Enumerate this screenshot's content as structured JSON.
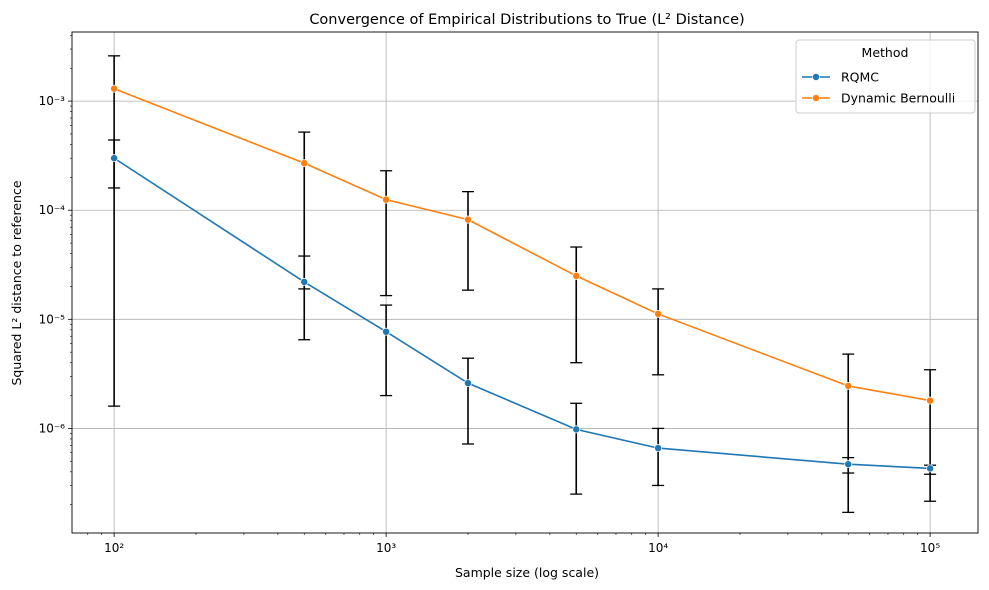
{
  "chart_data": {
    "type": "line",
    "title": "Convergence of Empirical Distributions to True (L² Distance)",
    "xlabel": "Sample size (log scale)",
    "ylabel": "Squared L² distance to reference",
    "xscale": "log",
    "yscale": "log",
    "xlim": [
      70,
      150000
    ],
    "ylim": [
      1.1e-07,
      0.0043
    ],
    "x_tick_labels": [
      {
        "value": 100,
        "label": "10²"
      },
      {
        "value": 1000,
        "label": "10³"
      },
      {
        "value": 10000,
        "label": "10⁴"
      },
      {
        "value": 100000,
        "label": "10⁵"
      }
    ],
    "y_tick_labels": [
      {
        "value": 1e-06,
        "label": "10⁻⁶"
      },
      {
        "value": 1e-05,
        "label": "10⁻⁵"
      },
      {
        "value": 0.0001,
        "label": "10⁻⁴"
      },
      {
        "value": 0.001,
        "label": "10⁻³"
      }
    ],
    "grid": true,
    "legend": {
      "title": "Method",
      "placement": "top-right"
    },
    "x": [
      100,
      500,
      1000,
      2000,
      5000,
      10000,
      50000,
      100000
    ],
    "series": [
      {
        "name": "RQMC",
        "color": "#1f77b4",
        "values": [
          0.0003,
          2.2e-05,
          7.7e-06,
          2.6e-06,
          9.8e-07,
          6.6e-07,
          4.7e-07,
          4.3e-07
        ],
        "err_low": [
          1.6e-06,
          6.5e-06,
          2e-06,
          7.2e-07,
          2.5e-07,
          3e-07,
          3.9e-07,
          3.8e-07
        ],
        "err_high": [
          0.00044,
          3.8e-05,
          1.35e-05,
          4.4e-06,
          1.7e-06,
          1e-06,
          5.4e-07,
          4.6e-07
        ]
      },
      {
        "name": "Dynamic Bernoulli",
        "color": "#ff7f0e",
        "values": [
          0.0013,
          0.00027,
          0.000125,
          8.2e-05,
          2.5e-05,
          1.12e-05,
          2.45e-06,
          1.8e-06
        ],
        "err_low": [
          0.00016,
          1.9e-05,
          1.65e-05,
          1.85e-05,
          4e-06,
          3.1e-06,
          1.7e-07,
          2.15e-07
        ],
        "err_high": [
          0.0026,
          0.00052,
          0.00023,
          0.000148,
          4.6e-05,
          1.9e-05,
          4.8e-06,
          3.45e-06
        ]
      }
    ]
  }
}
